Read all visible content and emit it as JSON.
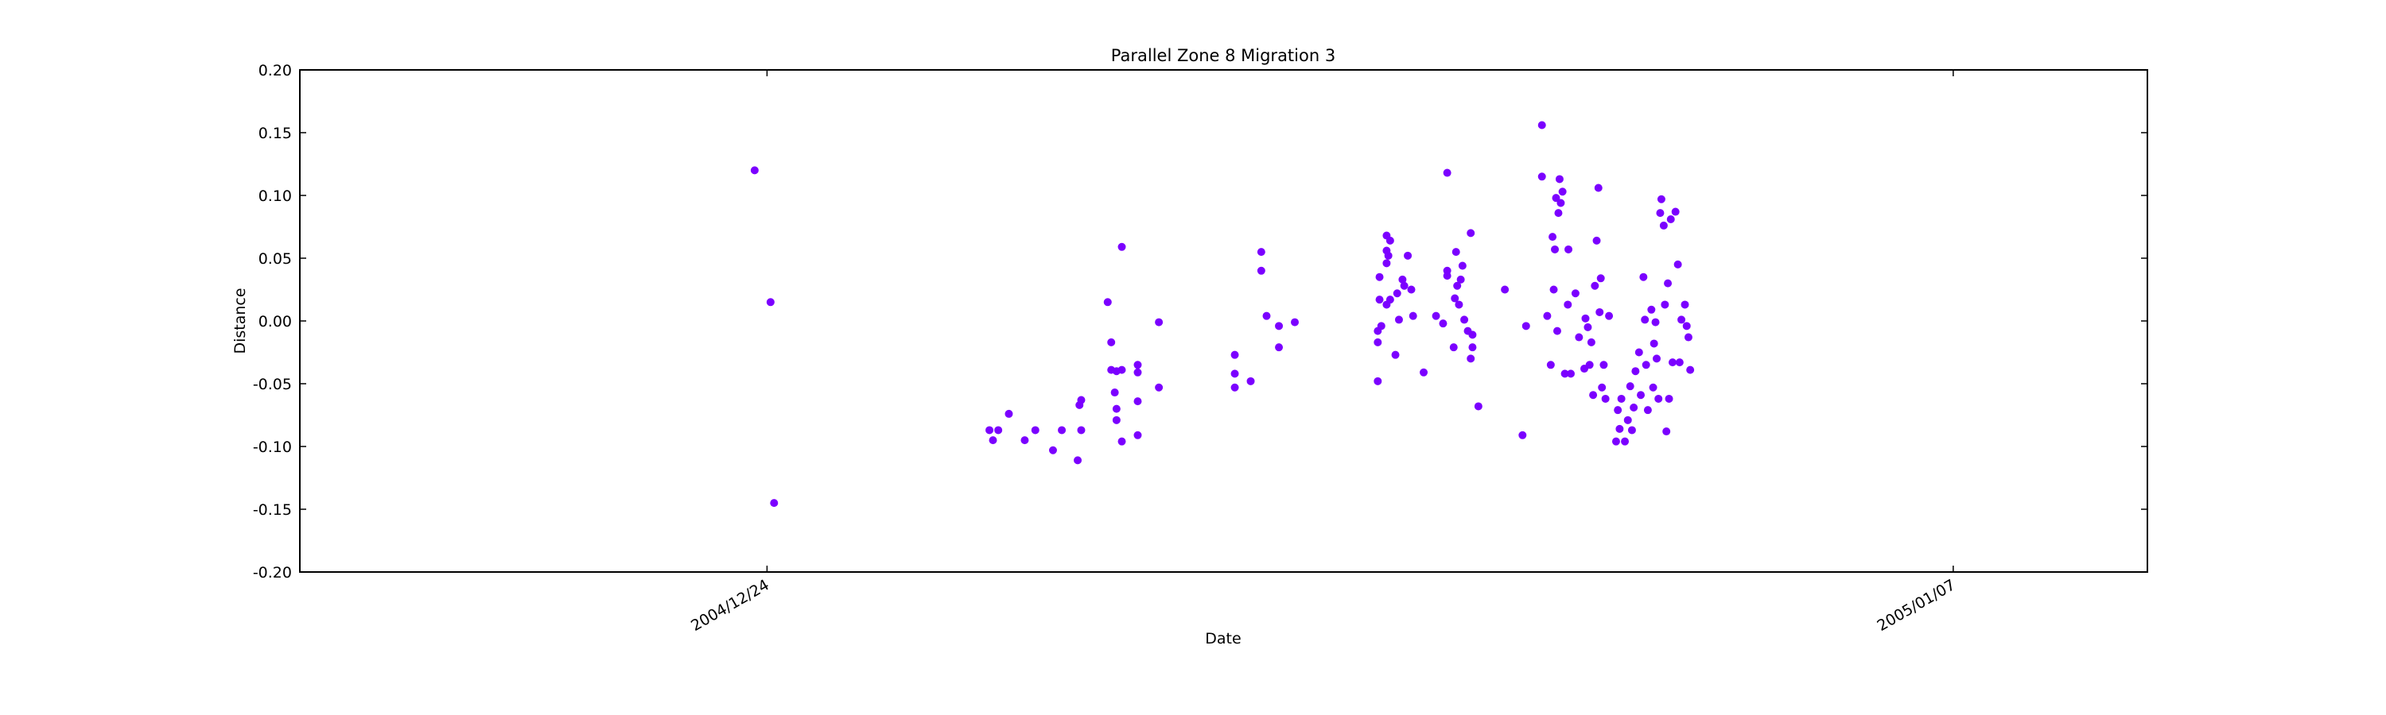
{
  "chart_data": {
    "type": "scatter",
    "title": "Parallel Zone 8 Migration 3",
    "x_label": "Date",
    "y_label": "Distance",
    "color": "#7b00ff",
    "xlim": [
      "2004-12-18T11:40",
      "2005-01-09T07:00"
    ],
    "xticks": [
      {
        "value": "2004-12-24T00:00",
        "label": "2004/12/24"
      },
      {
        "value": "2005-01-07T00:00",
        "label": "2005/01/07"
      }
    ],
    "ylim": [
      -0.2,
      0.2
    ],
    "yticks": [
      {
        "value": -0.2,
        "label": "-0.20"
      },
      {
        "value": -0.15,
        "label": "-0.15"
      },
      {
        "value": -0.1,
        "label": "-0.10"
      },
      {
        "value": -0.05,
        "label": "-0.05"
      },
      {
        "value": 0,
        "label": "0.00"
      },
      {
        "value": 0.05,
        "label": "0.05"
      },
      {
        "value": 0.1,
        "label": "0.10"
      },
      {
        "value": 0.15,
        "label": "0.15"
      },
      {
        "value": 0.2,
        "label": "0.20"
      }
    ],
    "x": [
      "2004-12-23T20:30",
      "2004-12-24T01:00",
      "2004-12-24T02:00",
      "2004-12-26T15:00",
      "2004-12-26T16:00",
      "2004-12-26T17:30",
      "2004-12-26T20:30",
      "2004-12-27T01:00",
      "2004-12-27T04:00",
      "2004-12-27T09:00",
      "2004-12-27T11:30",
      "2004-12-27T16:00",
      "2004-12-27T16:30",
      "2004-12-27T17:00",
      "2004-12-27T17:00",
      "2004-12-28T00:30",
      "2004-12-28T01:30",
      "2004-12-28T01:30",
      "2004-12-28T02:30",
      "2004-12-28T03:00",
      "2004-12-28T03:00",
      "2004-12-28T03:00",
      "2004-12-28T04:30",
      "2004-12-28T04:30",
      "2004-12-28T04:30",
      "2004-12-28T09:00",
      "2004-12-28T09:00",
      "2004-12-28T09:00",
      "2004-12-28T09:00",
      "2004-12-28T15:00",
      "2004-12-28T15:00",
      "2004-12-29T12:30",
      "2004-12-29T12:30",
      "2004-12-29T12:30",
      "2004-12-29T17:00",
      "2004-12-29T20:00",
      "2004-12-29T20:00",
      "2004-12-29T21:30",
      "2004-12-30T01:00",
      "2004-12-30T01:00",
      "2004-12-30T05:30",
      "2004-12-31T05:00",
      "2004-12-31T05:00",
      "2004-12-31T05:00",
      "2004-12-31T05:30",
      "2004-12-31T05:30",
      "2004-12-31T06:00",
      "2004-12-31T07:30",
      "2004-12-31T07:30",
      "2004-12-31T07:30",
      "2004-12-31T07:30",
      "2004-12-31T08:00",
      "2004-12-31T08:30",
      "2004-12-31T08:30",
      "2004-12-31T10:00",
      "2004-12-31T10:30",
      "2004-12-31T11:00",
      "2004-12-31T12:00",
      "2004-12-31T12:30",
      "2004-12-31T13:30",
      "2004-12-31T14:30",
      "2004-12-31T15:00",
      "2004-12-31T18:00",
      "2004-12-31T21:30",
      "2004-12-31T23:30",
      "2005-01-01T00:40",
      "2005-01-01T00:40",
      "2005-01-01T00:40",
      "2005-01-01T02:30",
      "2005-01-01T02:50",
      "2005-01-01T03:10",
      "2005-01-01T03:30",
      "2005-01-01T04:00",
      "2005-01-01T04:30",
      "2005-01-01T05:00",
      "2005-01-01T05:30",
      "2005-01-01T06:30",
      "2005-01-01T07:20",
      "2005-01-01T07:20",
      "2005-01-01T07:50",
      "2005-01-01T07:50",
      "2005-01-01T09:30",
      "2005-01-01T17:00",
      "2005-01-01T22:00",
      "2005-01-01T23:00",
      "2005-01-02T03:30",
      "2005-01-02T03:30",
      "2005-01-02T05:00",
      "2005-01-02T06:00",
      "2005-01-02T06:30",
      "2005-01-02T06:50",
      "2005-01-02T07:10",
      "2005-01-02T07:30",
      "2005-01-02T07:50",
      "2005-01-02T08:10",
      "2005-01-02T08:30",
      "2005-01-02T08:50",
      "2005-01-02T09:20",
      "2005-01-02T10:00",
      "2005-01-02T10:50",
      "2005-01-02T11:00",
      "2005-01-02T11:40",
      "2005-01-02T13:00",
      "2005-01-02T14:00",
      "2005-01-02T15:30",
      "2005-01-02T15:50",
      "2005-01-02T16:30",
      "2005-01-02T17:00",
      "2005-01-02T17:30",
      "2005-01-02T18:00",
      "2005-01-02T18:30",
      "2005-01-02T19:00",
      "2005-01-02T19:30",
      "2005-01-02T19:50",
      "2005-01-02T20:10",
      "2005-01-02T20:30",
      "2005-01-02T21:00",
      "2005-01-02T21:30",
      "2005-01-02T22:30",
      "2005-01-03T00:30",
      "2005-01-03T01:00",
      "2005-01-03T01:30",
      "2005-01-03T02:00",
      "2005-01-03T03:00",
      "2005-01-03T03:50",
      "2005-01-03T04:30",
      "2005-01-03T05:00",
      "2005-01-03T05:30",
      "2005-01-03T06:00",
      "2005-01-03T07:00",
      "2005-01-03T07:30",
      "2005-01-03T08:15",
      "2005-01-03T08:40",
      "2005-01-03T09:00",
      "2005-01-03T09:30",
      "2005-01-03T10:30",
      "2005-01-03T11:00",
      "2005-01-03T11:15",
      "2005-01-03T11:40",
      "2005-01-03T12:00",
      "2005-01-03T12:30",
      "2005-01-03T13:00",
      "2005-01-03T13:20",
      "2005-01-03T14:00",
      "2005-01-03T14:20",
      "2005-01-03T14:45",
      "2005-01-03T15:10",
      "2005-01-03T15:30",
      "2005-01-03T16:00",
      "2005-01-03T16:30",
      "2005-01-03T17:20",
      "2005-01-03T18:00",
      "2005-01-03T18:30",
      "2005-01-03T19:00",
      "2005-01-03T20:00",
      "2005-01-03T20:30",
      "2005-01-03T21:00",
      "2005-01-03T21:30"
    ],
    "values": [
      0.12,
      0.015,
      -0.145,
      -0.087,
      -0.095,
      -0.087,
      -0.074,
      -0.095,
      -0.087,
      -0.103,
      -0.087,
      -0.111,
      -0.067,
      -0.063,
      -0.087,
      0.015,
      -0.017,
      -0.039,
      -0.057,
      -0.04,
      -0.07,
      -0.079,
      -0.096,
      0.059,
      -0.039,
      -0.035,
      -0.041,
      -0.064,
      -0.091,
      -0.001,
      -0.053,
      -0.027,
      -0.042,
      -0.053,
      -0.048,
      0.055,
      0.04,
      0.004,
      -0.004,
      -0.021,
      -0.001,
      -0.048,
      -0.008,
      -0.017,
      0.035,
      0.017,
      -0.004,
      0.056,
      0.068,
      0.046,
      0.013,
      0.052,
      0.064,
      0.017,
      -0.027,
      0.022,
      0.001,
      0.033,
      0.028,
      0.052,
      0.025,
      0.004,
      -0.041,
      0.004,
      -0.002,
      0.118,
      0.04,
      0.036,
      -0.021,
      0.018,
      0.055,
      0.028,
      0.013,
      0.033,
      0.044,
      0.001,
      -0.008,
      0.07,
      -0.03,
      -0.021,
      -0.011,
      -0.068,
      0.025,
      -0.091,
      -0.004,
      0.156,
      0.115,
      0.004,
      -0.035,
      0.067,
      0.025,
      0.057,
      0.098,
      -0.008,
      0.086,
      0.113,
      0.094,
      0.103,
      -0.042,
      0.013,
      0.057,
      -0.042,
      0.022,
      -0.013,
      -0.038,
      0.002,
      -0.005,
      -0.035,
      -0.017,
      -0.059,
      0.028,
      0.064,
      0.106,
      0.007,
      0.034,
      -0.053,
      -0.035,
      -0.062,
      0.004,
      -0.096,
      -0.071,
      -0.086,
      -0.062,
      -0.096,
      -0.079,
      -0.052,
      -0.087,
      -0.069,
      -0.04,
      -0.025,
      -0.059,
      0.035,
      0.001,
      -0.035,
      -0.071,
      0.009,
      -0.053,
      -0.018,
      -0.001,
      -0.03,
      -0.062,
      0.086,
      0.097,
      0.076,
      0.013,
      -0.088,
      0.03,
      -0.062,
      0.081,
      -0.033,
      0.087,
      0.045,
      -0.033,
      0.001,
      0.013,
      -0.004,
      -0.013,
      -0.039
    ]
  }
}
